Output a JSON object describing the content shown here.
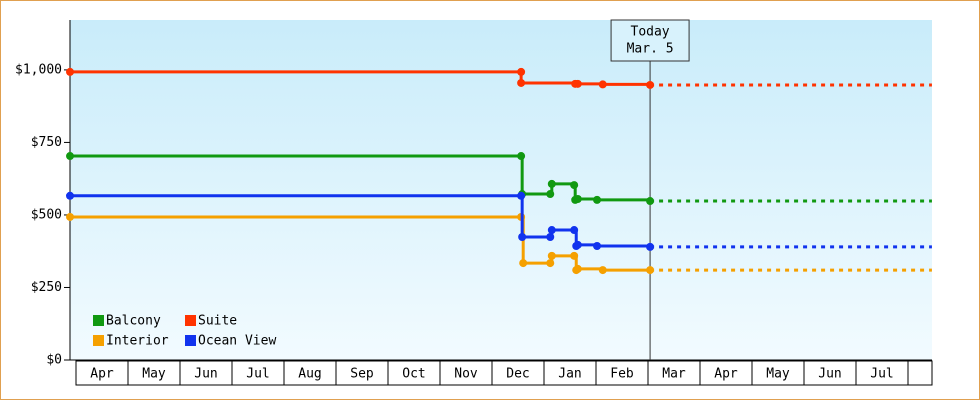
{
  "chart_data": {
    "type": "step-line",
    "ylim": [
      0,
      1172
    ],
    "yticks": [
      {
        "value": 0,
        "label": "$0"
      },
      {
        "value": 250,
        "label": "$250"
      },
      {
        "value": 500,
        "label": "$500"
      },
      {
        "value": 750,
        "label": "$750"
      },
      {
        "value": 1000,
        "label": "$1,000"
      }
    ],
    "xlim": [
      -0.115,
      16.46
    ],
    "months": [
      "Apr",
      "May",
      "Jun",
      "Jul",
      "Aug",
      "Sep",
      "Oct",
      "Nov",
      "Dec",
      "Jan",
      "Feb",
      "Mar",
      "Apr",
      "May",
      "Jun",
      "Jul"
    ],
    "today": {
      "x": 11.04,
      "label": [
        "Today",
        "Mar. 5"
      ]
    },
    "legend": "lower left",
    "series": [
      {
        "name": "Balcony",
        "color": "#119911",
        "x": [
          -0.115,
          8.56,
          8.58,
          9.12,
          9.15,
          9.58,
          9.6,
          9.65,
          10.02,
          11.04
        ],
        "values": [
          703,
          703,
          572,
          572,
          607,
          603,
          552,
          555,
          552,
          548
        ]
      },
      {
        "name": "Suite",
        "color": "#ff3300",
        "x": [
          -0.115,
          8.56,
          8.56,
          9.6,
          9.65,
          10.13,
          11.04
        ],
        "values": [
          993,
          993,
          955,
          952,
          952,
          950,
          948
        ]
      },
      {
        "name": "Interior",
        "color": "#f5a000",
        "x": [
          -0.115,
          8.56,
          8.6,
          9.12,
          9.15,
          9.58,
          9.62,
          9.65,
          10.13,
          11.04
        ],
        "values": [
          493,
          493,
          334,
          334,
          359,
          359,
          310,
          314,
          310,
          310
        ]
      },
      {
        "name": "Ocean View",
        "color": "#1133ee",
        "x": [
          -0.115,
          8.56,
          8.58,
          9.12,
          9.15,
          9.58,
          9.62,
          9.65,
          10.02,
          11.04
        ],
        "values": [
          566,
          566,
          424,
          424,
          448,
          448,
          393,
          397,
          393,
          390
        ]
      }
    ]
  }
}
